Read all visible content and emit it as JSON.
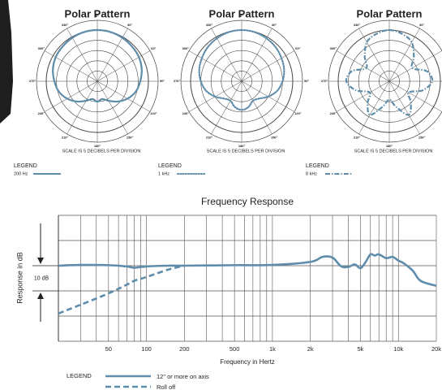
{
  "chart_data": [
    {
      "type": "polar",
      "title": "Polar Pattern",
      "subtitle": "SCALE IS 5 DECIBELS PER DIVISION",
      "legend_title": "LEGEND",
      "rlim": [
        -25,
        0
      ],
      "rticks": [
        -20,
        -15,
        -10,
        -5,
        0
      ],
      "angle_ticks": [
        {
          "value": 0,
          "label": "0°"
        },
        {
          "value": 30,
          "label": "30°"
        },
        {
          "value": 60,
          "label": "60°"
        },
        {
          "value": 90,
          "label": "90°"
        },
        {
          "value": 120,
          "label": "120°"
        },
        {
          "value": 150,
          "label": "150°"
        },
        {
          "value": 180,
          "label": "180°"
        },
        {
          "value": 210,
          "label": "210°"
        },
        {
          "value": 240,
          "label": "240°"
        },
        {
          "value": 270,
          "label": "270°"
        },
        {
          "value": 300,
          "label": "300°"
        },
        {
          "value": 330,
          "label": "330°"
        }
      ],
      "angles": [
        0,
        15,
        30,
        45,
        60,
        75,
        90,
        105,
        120,
        135,
        150,
        165,
        180,
        195,
        210,
        225,
        240,
        255,
        270,
        285,
        300,
        315,
        330,
        345
      ],
      "series": [
        {
          "name": "200 Hz",
          "color": "#5e8cab",
          "style": "solid",
          "values": [
            0,
            -0.1,
            -0.5,
            -1,
            -1.5,
            -2.5,
            -4,
            -5.5,
            -8,
            -11,
            -14,
            -16,
            -15,
            -16,
            -14,
            -11,
            -8,
            -5.5,
            -4,
            -2.5,
            -1.5,
            -1,
            -0.5,
            -0.1
          ]
        }
      ]
    },
    {
      "type": "polar",
      "title": "Polar Pattern",
      "subtitle": "SCALE IS 5 DECIBELS PER DIVISION",
      "legend_title": "LEGEND",
      "rlim": [
        -25,
        0
      ],
      "rticks": [
        -20,
        -15,
        -10,
        -5,
        0
      ],
      "angle_ticks": [
        {
          "value": 0,
          "label": "0°"
        },
        {
          "value": 30,
          "label": "30°"
        },
        {
          "value": 60,
          "label": "60°"
        },
        {
          "value": 90,
          "label": "90°"
        },
        {
          "value": 120,
          "label": "120°"
        },
        {
          "value": 150,
          "label": "150°"
        },
        {
          "value": 180,
          "label": "180°"
        },
        {
          "value": 210,
          "label": "210°"
        },
        {
          "value": 240,
          "label": "240°"
        },
        {
          "value": 270,
          "label": "270°"
        },
        {
          "value": 300,
          "label": "300°"
        },
        {
          "value": 330,
          "label": "330°"
        }
      ],
      "angles": [
        0,
        15,
        30,
        45,
        60,
        75,
        90,
        105,
        120,
        135,
        150,
        165,
        180,
        195,
        210,
        225,
        240,
        255,
        270,
        285,
        300,
        315,
        330,
        345
      ],
      "series": [
        {
          "name": "1 kHz",
          "color": "#5e8cab",
          "style": "dotted",
          "values": [
            0,
            -0.2,
            -0.8,
            -1.5,
            -2.5,
            -3.5,
            -5,
            -7,
            -10,
            -13,
            -14,
            -12,
            -11,
            -12,
            -14,
            -13,
            -10,
            -7,
            -5,
            -3.5,
            -2.5,
            -1.5,
            -0.8,
            -0.2
          ]
        }
      ]
    },
    {
      "type": "polar",
      "title": "Polar Pattern",
      "subtitle": "SCALE IS 5 DECIBELS PER DIVISION",
      "legend_title": "LEGEND",
      "rlim": [
        -25,
        0
      ],
      "rticks": [
        -20,
        -15,
        -10,
        -5,
        0
      ],
      "angle_ticks": [
        {
          "value": 0,
          "label": "0°"
        },
        {
          "value": 30,
          "label": "30°"
        },
        {
          "value": 60,
          "label": "60°"
        },
        {
          "value": 90,
          "label": "90°"
        },
        {
          "value": 120,
          "label": "120°"
        },
        {
          "value": 150,
          "label": "150°"
        },
        {
          "value": 180,
          "label": "180°"
        },
        {
          "value": 210,
          "label": "210°"
        },
        {
          "value": 240,
          "label": "240°"
        },
        {
          "value": 270,
          "label": "270°"
        },
        {
          "value": 300,
          "label": "300°"
        },
        {
          "value": 330,
          "label": "330°"
        }
      ],
      "angles": [
        0,
        15,
        30,
        45,
        60,
        75,
        90,
        105,
        120,
        135,
        150,
        165,
        180,
        195,
        210,
        225,
        240,
        255,
        270,
        285,
        300,
        315,
        330,
        345
      ],
      "series": [
        {
          "name": "8 kHz",
          "color": "#5e8cab",
          "style": "dashdot",
          "values": [
            0,
            -1,
            -3,
            -8,
            -12,
            -6,
            -4,
            -8,
            -14,
            -10,
            -6,
            -12,
            -16,
            -12,
            -6,
            -10,
            -14,
            -8,
            -4,
            -6,
            -12,
            -8,
            -3,
            -1
          ]
        }
      ]
    },
    {
      "type": "line",
      "title": "Frequency Response",
      "xlabel": "Frequency in Hertz",
      "ylabel": "Response in dB",
      "annotation": "10 dB",
      "legend_title": "LEGEND",
      "xscale": "log",
      "xlim": [
        20,
        20000
      ],
      "xticks": [
        50,
        100,
        200,
        500,
        {
          "value": 1000,
          "label": "1k"
        },
        {
          "value": 2000,
          "label": "2k"
        },
        {
          "value": 5000,
          "label": "5k"
        },
        {
          "value": 10000,
          "label": "10k"
        },
        {
          "value": 20000,
          "label": "20k"
        }
      ],
      "xgrid": [
        20,
        30,
        40,
        50,
        60,
        70,
        80,
        90,
        100,
        200,
        300,
        400,
        500,
        600,
        700,
        800,
        900,
        1000,
        2000,
        3000,
        4000,
        5000,
        6000,
        7000,
        8000,
        9000,
        10000,
        20000
      ],
      "ylim": [
        -30,
        20
      ],
      "yticks": [
        -30,
        -20,
        -10,
        0,
        10,
        20
      ],
      "x": [
        20,
        30,
        50,
        70,
        80,
        100,
        150,
        200,
        500,
        1000,
        2000,
        2500,
        3000,
        3500,
        4000,
        4500,
        5000,
        5500,
        6000,
        6500,
        7000,
        8000,
        9000,
        10000,
        11000,
        13000,
        15000,
        20000
      ],
      "series": [
        {
          "name": "12\" or more on axis",
          "color": "#5e8cab",
          "style": "solid",
          "values": [
            0,
            0.3,
            0.2,
            -0.3,
            -0.8,
            -0.3,
            0,
            0,
            0.2,
            0.3,
            1.5,
            3.5,
            3.2,
            -0.2,
            -0.5,
            0.5,
            -1,
            1.5,
            4.5,
            4,
            4.5,
            3,
            3.5,
            2,
            1,
            -2,
            -6,
            -8
          ]
        },
        {
          "name": "Roll off",
          "color": "#5e8cab",
          "style": "dashed",
          "values": [
            -19,
            -15.5,
            -11,
            -7.5,
            -6,
            -4.5,
            -1.5,
            0,
            null,
            null,
            null,
            null,
            null,
            null,
            null,
            null,
            null,
            null,
            null,
            null,
            null,
            null,
            null,
            null,
            null,
            null,
            null,
            null
          ]
        }
      ]
    }
  ]
}
